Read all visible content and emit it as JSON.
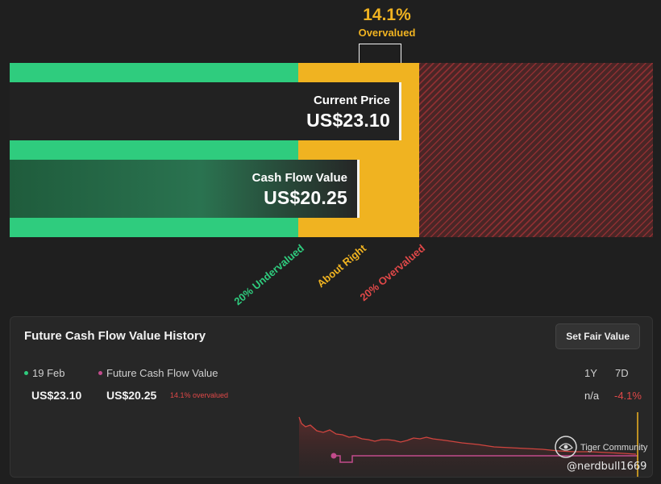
{
  "valuation": {
    "percent": "14.1%",
    "status": "Overvalued",
    "current_price": {
      "caption": "Current Price",
      "value": "US$23.10",
      "amount": 23.1
    },
    "cash_flow_value": {
      "caption": "Cash Flow Value",
      "value": "US$20.25",
      "amount": 20.25
    },
    "zones": [
      {
        "label": "20% Undervalued",
        "color": "#2fcc7e"
      },
      {
        "label": "About Right",
        "color": "#f0b321"
      },
      {
        "label": "20% Overvalued",
        "color": "#e04848"
      }
    ]
  },
  "history": {
    "title": "Future Cash Flow Value History",
    "set_fair_value_label": "Set Fair Value",
    "legend": [
      {
        "label": "19 Feb",
        "color": "#2fcc7e",
        "value": "US$23.10"
      },
      {
        "label": "Future Cash Flow Value",
        "color": "#c24b8c",
        "value": "US$20.25",
        "note": "14.1% overvalued"
      }
    ],
    "ranges": [
      {
        "label": "1Y",
        "value": "n/a",
        "color": "#d9d9d9"
      },
      {
        "label": "7D",
        "value": "-4.1%",
        "color": "#e04848"
      }
    ]
  },
  "watermark": {
    "brand": "Tiger Community",
    "user": "@nerdbull1669"
  }
}
